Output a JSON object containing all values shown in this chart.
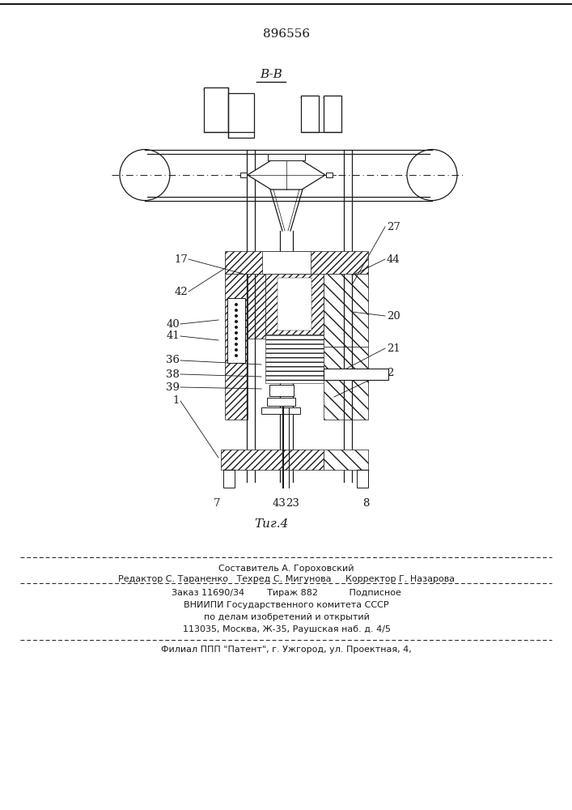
{
  "patent_number": "896556",
  "section_label": "B-B",
  "fig_caption": "Τиг.4",
  "background_color": "#ffffff",
  "line_color": "#1a1a1a",
  "footer_line1": "Составитель А. Гороховский",
  "footer_line2": "Редактор С. Тараненко   Техред С. Мигунова     Корректор Г. Назарова",
  "footer_line3": "Заказ 11690/34        Тираж 882           Подписное",
  "footer_line4": "ВНИИПИ Государственного комитета СССР",
  "footer_line5": "по делам изобретений и открытий",
  "footer_line6": "113035, Москва, Ж-35, Раушская наб. д. 4/5",
  "footer_line7": "Филиал ППП \"Патент\", г. Ужгород, ул. Проектная, 4,"
}
